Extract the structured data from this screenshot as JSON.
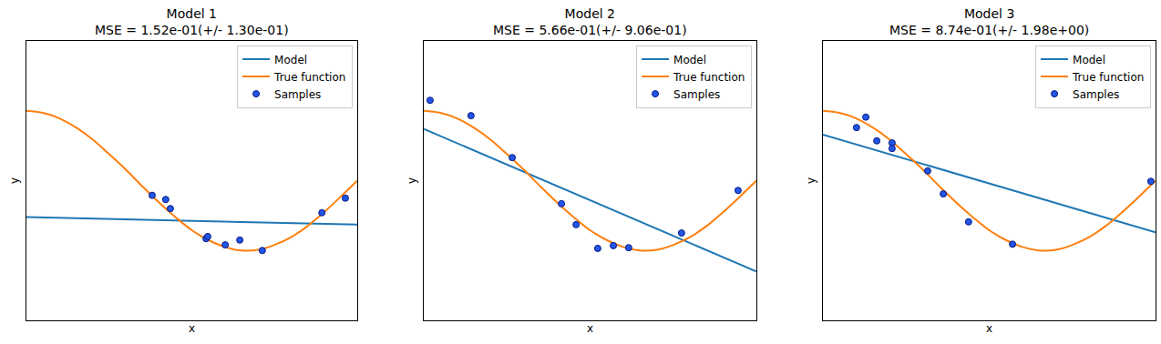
{
  "chart_data": [
    {
      "type": "line",
      "title": "Model 1",
      "subtitle": "MSE = 1.52e-01(+/- 1.30e-01)",
      "x_label": "x",
      "y_label": "y",
      "xlim": [
        0,
        1
      ],
      "ylim": [
        -2,
        2
      ],
      "tick_labels": false,
      "grid": false,
      "legend": "upper right",
      "series": [
        {
          "name": "Model",
          "type": "line",
          "color": "#1f77b4",
          "line_style": "solid",
          "x": [
            0,
            1
          ],
          "values": [
            -0.52,
            -0.63
          ]
        },
        {
          "name": "True function",
          "type": "line",
          "color": "#ff7f0e",
          "line_style": "solid",
          "x": [
            0,
            0.05,
            0.1,
            0.15,
            0.2,
            0.25,
            0.3,
            0.35,
            0.4,
            0.45,
            0.5,
            0.55,
            0.6,
            0.65,
            0.7,
            0.75,
            0.8,
            0.85,
            0.9,
            0.95,
            1
          ],
          "values": [
            1,
            0.97,
            0.89,
            0.76,
            0.59,
            0.38,
            0.16,
            -0.08,
            -0.31,
            -0.52,
            -0.71,
            -0.85,
            -0.95,
            -1,
            -0.99,
            -0.92,
            -0.81,
            -0.65,
            -0.45,
            -0.23,
            0
          ]
        },
        {
          "name": "Samples",
          "type": "scatter",
          "color": "#2255e8",
          "marker": "circle",
          "x": [
            0.38,
            0.421,
            0.435,
            0.543,
            0.548,
            0.601,
            0.645,
            0.713,
            0.893,
            0.964
          ],
          "values": [
            -0.21,
            -0.27,
            -0.4,
            -0.83,
            -0.8,
            -0.92,
            -0.85,
            -1,
            -0.46,
            -0.25
          ]
        }
      ]
    },
    {
      "type": "line",
      "title": "Model 2",
      "subtitle": "MSE = 5.66e-01(+/- 9.06e-01)",
      "x_label": "x",
      "y_label": "y",
      "xlim": [
        0,
        1
      ],
      "ylim": [
        -2,
        2
      ],
      "tick_labels": false,
      "grid": false,
      "legend": "upper right",
      "series": [
        {
          "name": "Model",
          "type": "line",
          "color": "#1f77b4",
          "line_style": "solid",
          "x": [
            0,
            1
          ],
          "values": [
            0.74,
            -1.3
          ]
        },
        {
          "name": "True function",
          "type": "line",
          "color": "#ff7f0e",
          "line_style": "solid",
          "x": [
            0,
            0.05,
            0.1,
            0.15,
            0.2,
            0.25,
            0.3,
            0.35,
            0.4,
            0.45,
            0.5,
            0.55,
            0.6,
            0.65,
            0.7,
            0.75,
            0.8,
            0.85,
            0.9,
            0.95,
            1
          ],
          "values": [
            1,
            0.97,
            0.89,
            0.76,
            0.59,
            0.38,
            0.16,
            -0.08,
            -0.31,
            -0.52,
            -0.71,
            -0.85,
            -0.95,
            -1,
            -0.99,
            -0.92,
            -0.81,
            -0.65,
            -0.45,
            -0.23,
            0
          ]
        },
        {
          "name": "Samples",
          "type": "scatter",
          "color": "#2255e8",
          "marker": "circle",
          "x": [
            0.019,
            0.142,
            0.266,
            0.414,
            0.458,
            0.523,
            0.57,
            0.616,
            0.775,
            0.945
          ],
          "values": [
            1.15,
            0.93,
            0.33,
            -0.33,
            -0.63,
            -0.97,
            -0.93,
            -0.96,
            -0.75,
            -0.14
          ]
        }
      ]
    },
    {
      "type": "line",
      "title": "Model 3",
      "subtitle": "MSE = 8.74e-01(+/- 1.98e+00)",
      "x_label": "x",
      "y_label": "y",
      "xlim": [
        0,
        1
      ],
      "ylim": [
        -2,
        2
      ],
      "tick_labels": false,
      "grid": false,
      "legend": "upper right",
      "series": [
        {
          "name": "Model",
          "type": "line",
          "color": "#1f77b4",
          "line_style": "solid",
          "x": [
            0,
            1
          ],
          "values": [
            0.66,
            -0.74
          ]
        },
        {
          "name": "True function",
          "type": "line",
          "color": "#ff7f0e",
          "line_style": "solid",
          "x": [
            0,
            0.05,
            0.1,
            0.15,
            0.2,
            0.25,
            0.3,
            0.35,
            0.4,
            0.45,
            0.5,
            0.55,
            0.6,
            0.65,
            0.7,
            0.75,
            0.8,
            0.85,
            0.9,
            0.95,
            1
          ],
          "values": [
            1,
            0.97,
            0.89,
            0.76,
            0.59,
            0.38,
            0.16,
            -0.08,
            -0.31,
            -0.52,
            -0.71,
            -0.85,
            -0.95,
            -1,
            -0.99,
            -0.92,
            -0.81,
            -0.65,
            -0.45,
            -0.23,
            0
          ]
        },
        {
          "name": "Samples",
          "type": "scatter",
          "color": "#2255e8",
          "marker": "circle",
          "x": [
            0.101,
            0.129,
            0.162,
            0.208,
            0.208,
            0.315,
            0.362,
            0.438,
            0.57,
            0.986
          ],
          "values": [
            0.76,
            0.91,
            0.57,
            0.54,
            0.46,
            0.14,
            -0.19,
            -0.59,
            -0.91,
            -0.01
          ]
        }
      ]
    }
  ]
}
